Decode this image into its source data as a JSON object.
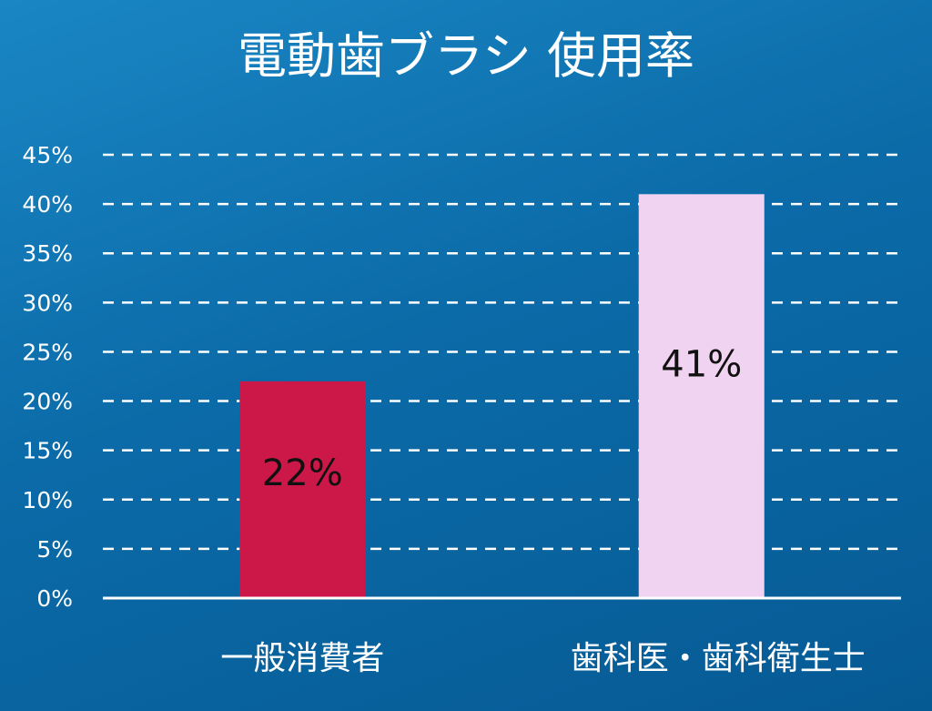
{
  "chart_data": {
    "type": "bar",
    "title": "電動歯ブラシ 使用率",
    "categories": [
      "一般消費者",
      "歯科医・歯科衛生士"
    ],
    "values": [
      22,
      41
    ],
    "value_labels": [
      "22%",
      "41%"
    ],
    "bar_colors": [
      "#cc1848",
      "#efd3f0"
    ],
    "ylim": [
      0,
      45
    ],
    "yticks": [
      0,
      5,
      10,
      15,
      20,
      25,
      30,
      35,
      40,
      45
    ],
    "ytick_labels": [
      "0%",
      "5%",
      "10%",
      "15%",
      "20%",
      "25%",
      "30%",
      "35%",
      "40%",
      "45%"
    ],
    "grid": true,
    "legend": "none"
  }
}
